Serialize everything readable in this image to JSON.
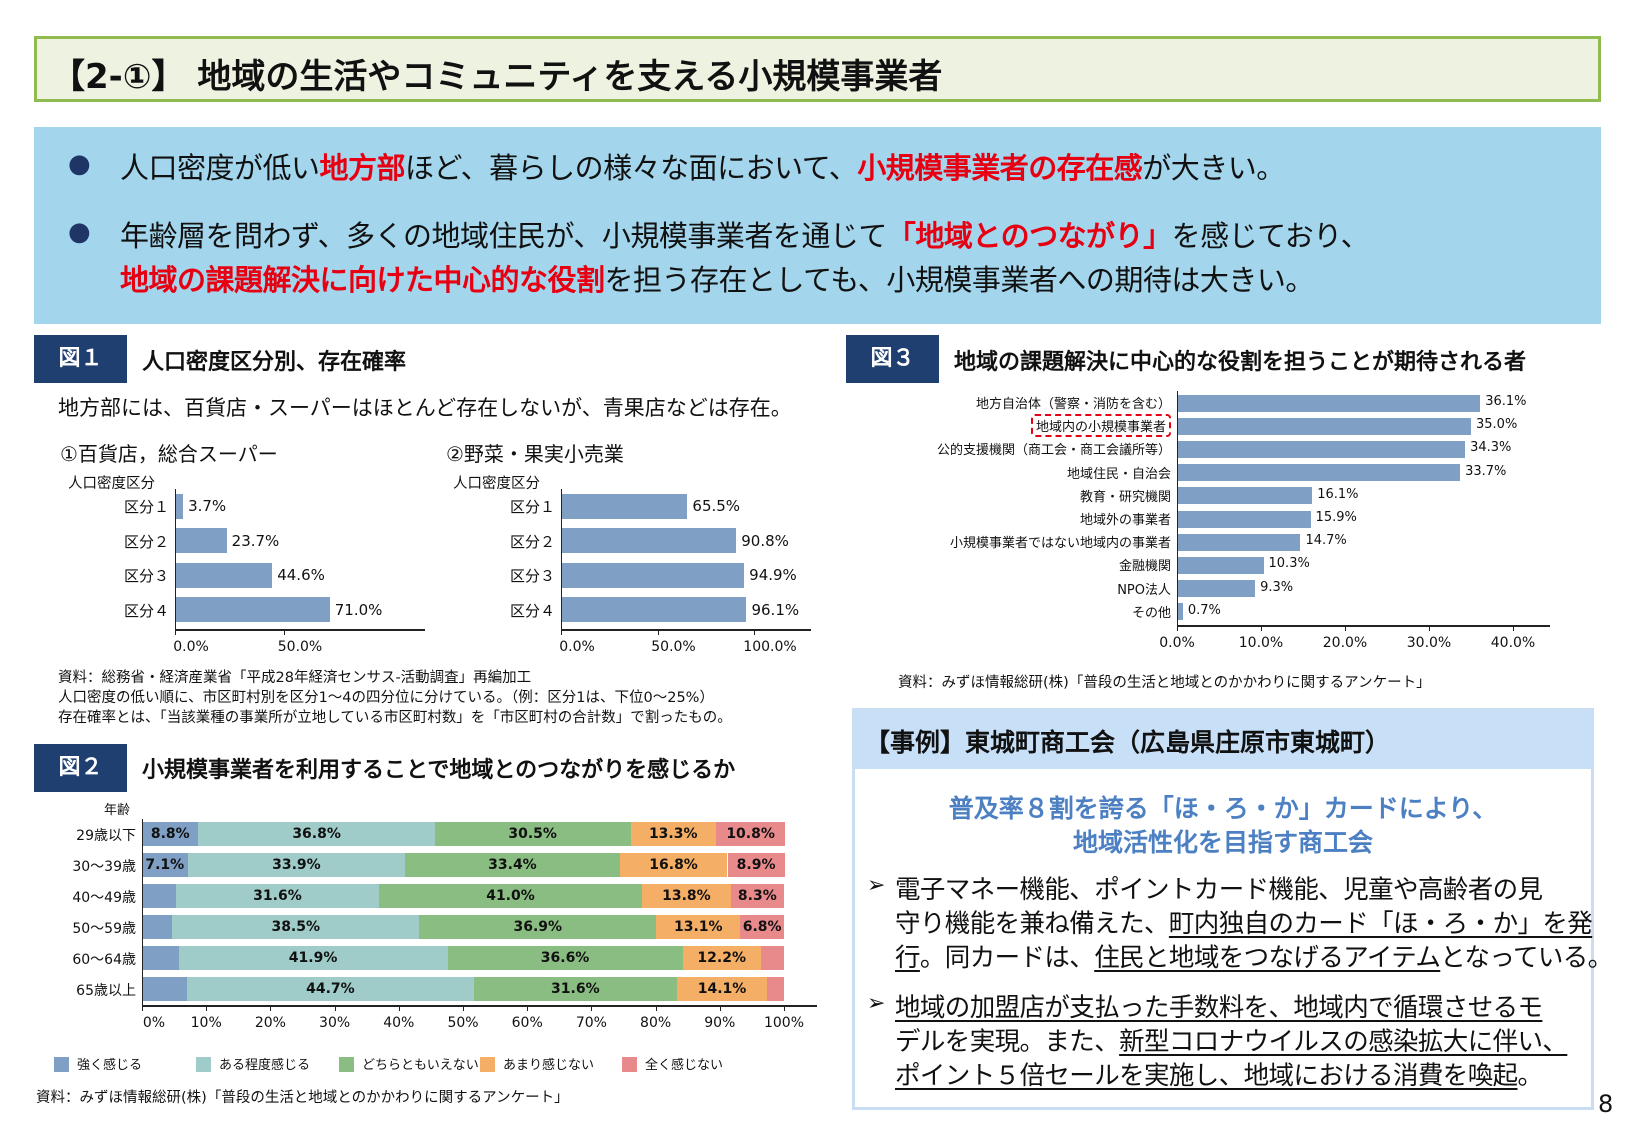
{
  "title": "【2-①】 地域の生活やコミュニティを支える小規模事業者",
  "band": {
    "lines": [
      [
        {
          "t": "人口密度が低い"
        },
        {
          "t": "地方部",
          "r": 1
        },
        {
          "t": "ほど、暮らしの様々な面において、"
        },
        {
          "t": "小規模事業者の存在感",
          "r": 1
        },
        {
          "t": "が大きい。"
        }
      ],
      [
        {
          "t": "年齢層を問わず、多くの地域住民が、小規模事業者を通じて"
        },
        {
          "t": "「地域とのつながり」",
          "r": 1
        },
        {
          "t": "を感じており、"
        }
      ],
      [
        {
          "t": "地域の課題解決に向けた中心的な役割",
          "r": 1
        },
        {
          "t": "を担う存在としても、小規模事業者への期待は大きい。"
        }
      ]
    ],
    "bullet": "●"
  },
  "fig1": {
    "label": "図１",
    "title": "人口密度区分別、存在確率",
    "caption": "地方部には、百貨店・スーパーはほとんど存在しないが、青果店などは存在。",
    "notes": [
      "資料：総務省・経済産業省「平成28年経済センサス-活動調査」再編加工",
      "人口密度の低い順に、市区町村別を区分1～4の四分位に分けている。（例：区分1は、下位0～25%）",
      "存在確率とは、「当該業種の事業所が立地している市区町村数」を「市区町村の合計数」で割ったもの。"
    ]
  },
  "fig2": {
    "label": "図２",
    "title": "小規模事業者を利用することで地域とのつながりを感じるか",
    "source": "資料：みずほ情報総研(株)「普段の生活と地域とのかかわりに関するアンケート」"
  },
  "fig3": {
    "label": "図３",
    "title": "地域の課題解決に中心的な役割を担うことが期待される者",
    "source": "資料：みずほ情報総研(株)「普段の生活と地域とのかかわりに関するアンケート」"
  },
  "chart_data": [
    {
      "id": "fig1a",
      "type": "bar",
      "orientation": "horizontal",
      "title": "①百貨店，総合スーパー",
      "ylabel": "人口密度区分",
      "categories": [
        "区分１",
        "区分２",
        "区分３",
        "区分４"
      ],
      "values": [
        3.7,
        23.7,
        44.6,
        71.0
      ],
      "value_labels": [
        "3.7%",
        "23.7%",
        "44.6%",
        "71.0%"
      ],
      "xlim": [
        0,
        100
      ],
      "xticks": [
        "0.0%",
        "50.0%"
      ],
      "color": "#7f9fc4"
    },
    {
      "id": "fig1b",
      "type": "bar",
      "orientation": "horizontal",
      "title": "②野菜・果実小売業",
      "ylabel": "人口密度区分",
      "categories": [
        "区分１",
        "区分２",
        "区分３",
        "区分４"
      ],
      "values": [
        65.5,
        90.8,
        94.9,
        96.1
      ],
      "value_labels": [
        "65.5%",
        "90.8%",
        "94.9%",
        "96.1%"
      ],
      "xlim": [
        0,
        125
      ],
      "xticks": [
        "0.0%",
        "50.0%",
        "100.0%"
      ],
      "color": "#7f9fc4"
    },
    {
      "id": "fig2",
      "type": "bar",
      "orientation": "horizontal",
      "stacked": true,
      "ylabel": "年齢",
      "categories": [
        "29歳以下",
        "30～39歳",
        "40～49歳",
        "50～59歳",
        "60～64歳",
        "65歳以上"
      ],
      "series": [
        {
          "name": "強く感じる",
          "color": "#7f9fc4",
          "values": [
            8.8,
            7.1,
            5.3,
            4.7,
            5.7,
            7.0
          ],
          "labels": [
            "8.8%",
            "7.1%",
            "",
            "",
            "",
            ""
          ]
        },
        {
          "name": "ある程度感じる",
          "color": "#9fcbc8",
          "values": [
            36.8,
            33.9,
            31.6,
            38.5,
            41.9,
            44.7
          ],
          "labels": [
            "36.8%",
            "33.9%",
            "31.6%",
            "38.5%",
            "41.9%",
            "44.7%"
          ]
        },
        {
          "name": "どちらともいえない",
          "color": "#8abd81",
          "values": [
            30.5,
            33.4,
            41.0,
            36.9,
            36.6,
            31.6
          ],
          "labels": [
            "30.5%",
            "33.4%",
            "41.0%",
            "36.9%",
            "36.6%",
            "31.6%"
          ]
        },
        {
          "name": "あまり感じない",
          "color": "#f4ae66",
          "values": [
            13.3,
            16.8,
            13.8,
            13.1,
            12.2,
            14.1
          ],
          "labels": [
            "13.3%",
            "16.8%",
            "13.8%",
            "13.1%",
            "12.2%",
            "14.1%"
          ]
        },
        {
          "name": "全く感じない",
          "color": "#e88a8c",
          "values": [
            10.8,
            8.9,
            8.3,
            6.8,
            3.6,
            2.6
          ],
          "labels": [
            "10.8%",
            "8.9%",
            "8.3%",
            "6.8%",
            "",
            ""
          ]
        }
      ],
      "xlim": [
        0,
        100
      ],
      "xticks": [
        "0%",
        "10%",
        "20%",
        "30%",
        "40%",
        "50%",
        "60%",
        "70%",
        "80%",
        "90%",
        "100%"
      ],
      "legend": "bottom"
    },
    {
      "id": "fig3",
      "type": "bar",
      "orientation": "horizontal",
      "categories": [
        "地方自治体（警察・消防を含む）",
        "地域内の小規模事業者",
        "公的支援機関（商工会・商工会議所等）",
        "地域住民・自治会",
        "教育・研究機関",
        "地域外の事業者",
        "小規模事業者ではない地域内の事業者",
        "金融機関",
        "NPO法人",
        "その他"
      ],
      "values": [
        36.1,
        35.0,
        34.3,
        33.7,
        16.1,
        15.9,
        14.7,
        10.3,
        9.3,
        0.7
      ],
      "value_labels": [
        "36.1%",
        "35.0%",
        "34.3%",
        "33.7%",
        "16.1%",
        "15.9%",
        "14.7%",
        "10.3%",
        "9.3%",
        "0.7%"
      ],
      "xlim": [
        0,
        40
      ],
      "xticks": [
        "0.0%",
        "10.0%",
        "20.0%",
        "30.0%",
        "40.0%"
      ],
      "highlight": "地域内の小規模事業者",
      "highlight_color": "#e60012",
      "color": "#7f9fc4"
    }
  ],
  "case": {
    "title": "【事例】東城町商工会（広島県庄原市東城町）",
    "sub": [
      "普及率８割を誇る「ほ・ろ・か」カードにより、",
      "地域活性化を目指す商工会"
    ],
    "arrow": "➢",
    "p1": [
      [
        {
          "t": "電子マネー機能、ポイントカード機能、児童や高齢者の見"
        }
      ],
      [
        {
          "t": "守り機能を兼ね備えた、"
        },
        {
          "t": "町内独自のカード「ほ・ろ・か」を発",
          "u": 1
        }
      ],
      [
        {
          "t": "行",
          "u": 1
        },
        {
          "t": "。同カードは、"
        },
        {
          "t": "住民と地域をつなげるアイテム",
          "u": 1
        },
        {
          "t": "となっている。"
        }
      ]
    ],
    "p2": [
      [
        {
          "t": "地域の加盟店が支払った手数料を、地域内で循環させるモ",
          "u": 1
        }
      ],
      [
        {
          "t": "デルを実現。また、"
        },
        {
          "t": "新型コロナウイルスの感染拡大に伴い、",
          "u": 1
        }
      ],
      [
        {
          "t": "ポイント５倍セールを実施し、地域における消費を喚起",
          "u": 1
        },
        {
          "t": "。"
        }
      ]
    ]
  },
  "page_number": "8"
}
